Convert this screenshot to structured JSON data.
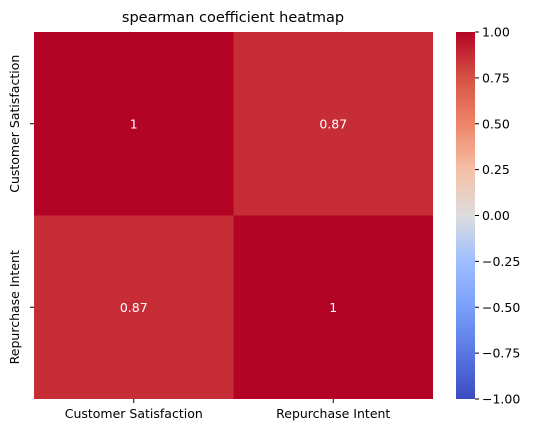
{
  "chart_data": {
    "type": "heatmap",
    "title": "spearman coefficient heatmap",
    "xlabel": "",
    "ylabel": "",
    "x_categories": [
      "Customer Satisfaction",
      "Repurchase Intent"
    ],
    "y_categories": [
      "Customer Satisfaction",
      "Repurchase Intent"
    ],
    "values": [
      [
        1,
        0.87
      ],
      [
        0.87,
        1
      ]
    ],
    "annotations": [
      [
        "1",
        "0.87"
      ],
      [
        "0.87",
        "1"
      ]
    ],
    "colormap": "coolwarm",
    "vmin": -1.0,
    "vmax": 1.0,
    "colorbar_ticks": [
      1.0,
      0.75,
      0.5,
      0.25,
      0.0,
      -0.25,
      -0.5,
      -0.75,
      -1.0
    ],
    "colorbar_tick_labels": [
      "1.00",
      "0.75",
      "0.50",
      "0.25",
      "0.00",
      "−0.25",
      "−0.50",
      "−0.75",
      "−1.00"
    ],
    "colors": {
      "coolwarm_min": "#3b4cc0",
      "coolwarm_mid": "#dddddd",
      "coolwarm_max": "#b40426",
      "annotation_text": "#ffffff",
      "axis_text": "#000000"
    }
  }
}
